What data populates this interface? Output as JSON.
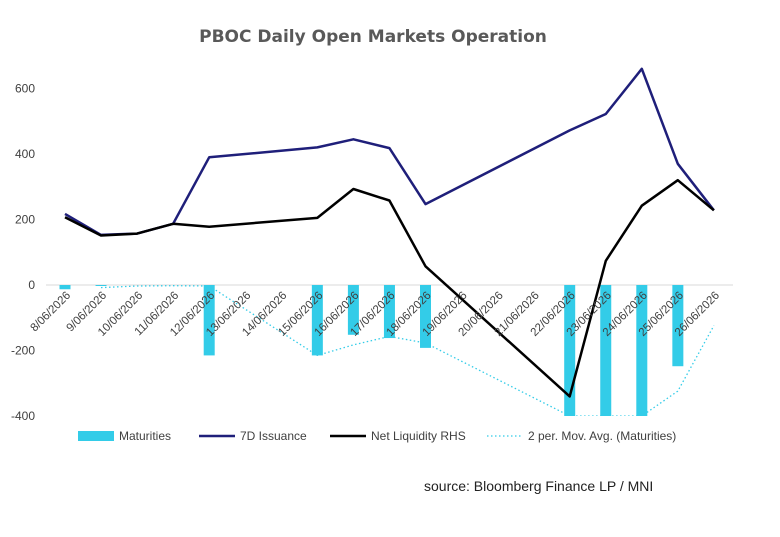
{
  "chart_data": {
    "type": "bar",
    "title": "PBOC Daily Open Markets Operation",
    "source": "source: Bloomberg Finance LP / MNI",
    "categories": [
      "8/06/2026",
      "9/06/2026",
      "10/06/2026",
      "11/06/2026",
      "12/06/2026",
      "13/06/2026",
      "14/06/2026",
      "15/06/2026",
      "16/06/2026",
      "17/06/2026",
      "18/06/2026",
      "19/06/2026",
      "20/06/2026",
      "21/06/2026",
      "22/06/2026",
      "23/06/2026",
      "24/06/2026",
      "25/06/2026",
      "26/06/2026"
    ],
    "ylim": [
      -400,
      700
    ],
    "yticks": [
      "-400",
      "-200",
      "0",
      "200",
      "400",
      "600"
    ],
    "grid": false,
    "legend_position": "bottom",
    "series": [
      {
        "name": "Maturities",
        "kind": "bar",
        "color": "#33CCE8",
        "values": [
          -13,
          -3,
          null,
          null,
          -215,
          null,
          null,
          -215,
          -152,
          -162,
          -192,
          null,
          null,
          null,
          -400,
          -400,
          -400,
          -248,
          null
        ]
      },
      {
        "name": "7D Issuance",
        "kind": "line",
        "color": "#1F1F7A",
        "values": [
          217,
          153,
          157,
          187,
          390,
          null,
          null,
          420,
          445,
          418,
          247,
          null,
          null,
          null,
          472,
          522,
          660,
          370,
          228
        ]
      },
      {
        "name": "Net Liquidity RHS",
        "kind": "line",
        "color": "#000000",
        "values": [
          207,
          151,
          157,
          187,
          178,
          null,
          null,
          205,
          293,
          258,
          57,
          null,
          null,
          null,
          -340,
          74,
          242,
          320,
          228
        ]
      },
      {
        "name": "2 per. Mov. Avg. (Maturities)",
        "kind": "dotted",
        "color": "#33CCE8",
        "values": [
          null,
          -8,
          -3,
          -2,
          -3,
          null,
          null,
          -215,
          -183,
          -157,
          -177,
          null,
          null,
          null,
          -400,
          -400,
          -400,
          -324,
          -124
        ]
      }
    ]
  }
}
